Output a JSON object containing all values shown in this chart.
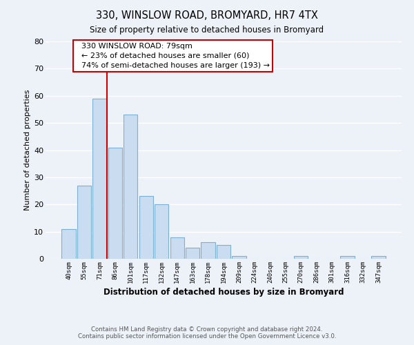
{
  "title": "330, WINSLOW ROAD, BROMYARD, HR7 4TX",
  "subtitle": "Size of property relative to detached houses in Bromyard",
  "xlabel": "Distribution of detached houses by size in Bromyard",
  "ylabel": "Number of detached properties",
  "bar_labels": [
    "40sqm",
    "55sqm",
    "71sqm",
    "86sqm",
    "101sqm",
    "117sqm",
    "132sqm",
    "147sqm",
    "163sqm",
    "178sqm",
    "194sqm",
    "209sqm",
    "224sqm",
    "240sqm",
    "255sqm",
    "270sqm",
    "286sqm",
    "301sqm",
    "316sqm",
    "332sqm",
    "347sqm"
  ],
  "bar_values": [
    11,
    27,
    59,
    41,
    53,
    23,
    20,
    8,
    4,
    6,
    5,
    1,
    0,
    0,
    0,
    1,
    0,
    0,
    1,
    0,
    1
  ],
  "bar_color": "#c9dcf0",
  "bar_edge_color": "#7bafd4",
  "ylim": [
    0,
    80
  ],
  "yticks": [
    0,
    10,
    20,
    30,
    40,
    50,
    60,
    70,
    80
  ],
  "vline_color": "#cc0000",
  "annotation_title": "330 WINSLOW ROAD: 79sqm",
  "annotation_line1": "← 23% of detached houses are smaller (60)",
  "annotation_line2": "74% of semi-detached houses are larger (193) →",
  "annotation_box_color": "#ffffff",
  "annotation_box_edge_color": "#cc0000",
  "footer_line1": "Contains HM Land Registry data © Crown copyright and database right 2024.",
  "footer_line2": "Contains public sector information licensed under the Open Government Licence v3.0.",
  "background_color": "#edf2f9",
  "grid_color": "#ffffff"
}
